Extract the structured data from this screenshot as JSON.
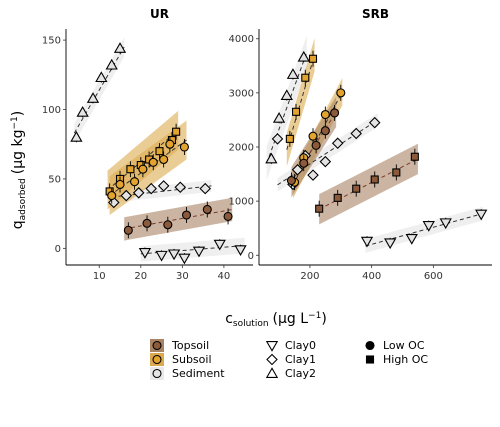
{
  "chart_data": {
    "type": "scatter",
    "y_axis_title": {
      "main": "q",
      "sub": "adsorbed",
      "units": "(µg kg",
      "sup": "−1",
      "close": ")"
    },
    "x_axis_title": {
      "main": "c",
      "sub": "solution",
      "units": "(µg L",
      "sup": "−1",
      "close": ")"
    },
    "colors": {
      "Topsoil": "#8a5a3a",
      "Subsoil": "#e3a32f",
      "Sediment": "#e4e4e4"
    },
    "ribbon_colors": {
      "Topsoil": "#a98464",
      "Subsoil": "#dcaa4e",
      "Sediment": "#e9e9e9"
    },
    "shapes": {
      "Clay0": "triangle-down",
      "Clay1": "diamond",
      "Clay2": "triangle-up",
      "Low OC": "circle",
      "High OC": "square"
    },
    "panels": [
      {
        "title": "UR",
        "xlim": [
          2,
          47
        ],
        "ylim": [
          -12,
          158
        ],
        "xticks": [
          10,
          20,
          30,
          40
        ],
        "yticks": [
          0,
          50,
          100,
          150
        ],
        "series": [
          {
            "soil": "Sediment",
            "shape": "triangle-up",
            "ribbon_half": 5,
            "points": [
              [
                4.5,
                80
              ],
              [
                6,
                98
              ],
              [
                8.5,
                108
              ],
              [
                10.5,
                123
              ],
              [
                13,
                132
              ],
              [
                15,
                144
              ]
            ],
            "fit": [
              [
                4,
                83
              ],
              [
                16,
                145
              ]
            ]
          },
          {
            "soil": "Sediment",
            "shape": "diamond",
            "ribbon_half": 3,
            "points": [
              [
                13.5,
                33
              ],
              [
                16.5,
                38
              ],
              [
                19.5,
                40
              ],
              [
                22.5,
                43
              ],
              [
                25.5,
                45
              ],
              [
                29.5,
                44
              ],
              [
                35.5,
                43
              ]
            ],
            "fit": [
              [
                13,
                37
              ],
              [
                37,
                45
              ]
            ]
          },
          {
            "soil": "Sediment",
            "shape": "triangle-down",
            "ribbon_half": 4,
            "points": [
              [
                21,
                -3
              ],
              [
                25,
                -5
              ],
              [
                28,
                -4
              ],
              [
                30.5,
                -7
              ],
              [
                34,
                -2
              ],
              [
                39,
                3
              ],
              [
                44,
                -1
              ]
            ],
            "fit": [
              [
                20,
                -4
              ],
              [
                45,
                2
              ]
            ]
          },
          {
            "soil": "Subsoil",
            "shape": "square",
            "ribbon_half": 10,
            "points": [
              [
                12.5,
                41
              ],
              [
                15,
                50
              ],
              [
                17.5,
                57
              ],
              [
                20,
                60
              ],
              [
                22,
                64
              ],
              [
                24.5,
                70
              ],
              [
                27.5,
                78
              ],
              [
                28.5,
                84
              ]
            ],
            "fit": [
              [
                12,
                42
              ],
              [
                29,
                85
              ]
            ]
          },
          {
            "soil": "Subsoil",
            "shape": "circle",
            "ribbon_half": 10,
            "points": [
              [
                13,
                38
              ],
              [
                15,
                46
              ],
              [
                18.5,
                48
              ],
              [
                20.5,
                57
              ],
              [
                23,
                62
              ],
              [
                25.5,
                64
              ],
              [
                27,
                75
              ],
              [
                30.5,
                73
              ]
            ],
            "fit": [
              [
                12.5,
                38
              ],
              [
                31,
                78
              ]
            ]
          },
          {
            "soil": "Topsoil",
            "shape": "circle",
            "ribbon_half": 6,
            "points": [
              [
                17,
                13
              ],
              [
                21.5,
                18
              ],
              [
                26.5,
                17
              ],
              [
                31,
                24
              ],
              [
                36,
                28
              ],
              [
                41,
                23
              ]
            ],
            "fit": [
              [
                16,
                14
              ],
              [
                42,
                28
              ]
            ]
          }
        ]
      },
      {
        "title": "SRB",
        "xlim": [
          35,
          790
        ],
        "ylim": [
          -180,
          4180
        ],
        "xticks": [
          200,
          400,
          600
        ],
        "yticks": [
          0,
          1000,
          2000,
          3000,
          4000
        ],
        "series": [
          {
            "soil": "Sediment",
            "shape": "triangle-up",
            "ribbon_half": 220,
            "points": [
              [
                75,
                1780
              ],
              [
                100,
                2530
              ],
              [
                125,
                2950
              ],
              [
                145,
                3340
              ],
              [
                180,
                3660
              ]
            ],
            "fit": [
              [
                60,
                1700
              ],
              [
                190,
                3750
              ]
            ]
          },
          {
            "soil": "Sediment",
            "shape": "diamond",
            "ribbon_half": 90,
            "points": [
              [
                95,
                2150
              ],
              [
                145,
                1310
              ],
              [
                160,
                1580
              ],
              [
                185,
                1840
              ],
              [
                210,
                1480
              ],
              [
                250,
                1730
              ],
              [
                290,
                2070
              ],
              [
                350,
                2250
              ],
              [
                410,
                2450
              ]
            ],
            "fit": [
              [
                95,
                1300
              ],
              [
                420,
                2500
              ]
            ]
          },
          {
            "soil": "Sediment",
            "shape": "triangle-down",
            "ribbon_half": 90,
            "points": [
              [
                385,
                260
              ],
              [
                460,
                230
              ],
              [
                530,
                310
              ],
              [
                585,
                550
              ],
              [
                640,
                600
              ],
              [
                755,
                760
              ]
            ],
            "fit": [
              [
                380,
                170
              ],
              [
                760,
                770
              ]
            ]
          },
          {
            "soil": "Subsoil",
            "shape": "square",
            "ribbon_half": 220,
            "points": [
              [
                135,
                2150
              ],
              [
                155,
                2650
              ],
              [
                185,
                3280
              ],
              [
                210,
                3630
              ]
            ],
            "fit": [
              [
                125,
                1950
              ],
              [
                215,
                3700
              ]
            ]
          },
          {
            "soil": "Subsoil",
            "shape": "circle",
            "ribbon_half": 180,
            "points": [
              [
                150,
                1350
              ],
              [
                180,
                1800
              ],
              [
                210,
                2200
              ],
              [
                250,
                2600
              ],
              [
                300,
                3000
              ]
            ],
            "fit": [
              [
                145,
                1300
              ],
              [
                305,
                3020
              ]
            ]
          },
          {
            "soil": "Topsoil",
            "shape": "circle",
            "ribbon_half": 200,
            "points": [
              [
                140,
                1380
              ],
              [
                180,
                1700
              ],
              [
                220,
                2030
              ],
              [
                250,
                2300
              ],
              [
                280,
                2630
              ]
            ],
            "fit": [
              [
                140,
                1350
              ],
              [
                285,
                2650
              ]
            ]
          },
          {
            "soil": "Topsoil",
            "shape": "square",
            "ribbon_half": 200,
            "points": [
              [
                230,
                860
              ],
              [
                290,
                1060
              ],
              [
                350,
                1230
              ],
              [
                410,
                1400
              ],
              [
                480,
                1530
              ],
              [
                540,
                1820
              ]
            ],
            "fit": [
              [
                230,
                850
              ],
              [
                550,
                1780
              ]
            ]
          }
        ]
      }
    ],
    "legend": {
      "fill_items": [
        {
          "label": "Topsoil",
          "soil": "Topsoil"
        },
        {
          "label": "Subsoil",
          "soil": "Subsoil"
        },
        {
          "label": "Sediment",
          "soil": "Sediment"
        }
      ],
      "shape_items": [
        {
          "label": "Clay0",
          "shape": "triangle-down"
        },
        {
          "label": "Clay1",
          "shape": "diamond"
        },
        {
          "label": "Clay2",
          "shape": "triangle-up"
        },
        {
          "label": "Low OC",
          "shape": "circle"
        },
        {
          "label": "High OC",
          "shape": "square"
        }
      ],
      "placement": "bottom"
    }
  }
}
